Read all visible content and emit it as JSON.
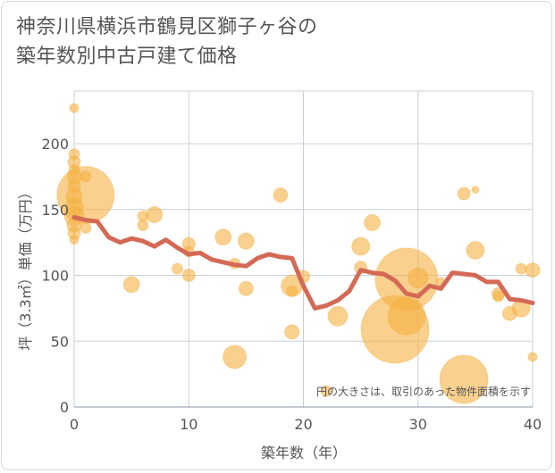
{
  "title": {
    "line1": "神奈川県横浜市鶴見区獅子ヶ谷の",
    "line2": "築年数別中古戸建て価格"
  },
  "chart_data": {
    "type": "scatter",
    "xlabel": "築年数（年）",
    "ylabel": "坪（3.3㎡）単価（万円）",
    "xlim": [
      0,
      40
    ],
    "ylim": [
      0,
      240
    ],
    "xticks": [
      "0",
      "10",
      "20",
      "30",
      "40"
    ],
    "yticks": [
      "0",
      "50",
      "100",
      "150",
      "200"
    ],
    "grid": true,
    "note": "円の大きさは、取引のあった物件面積を示す",
    "colors": {
      "bubble": "#f5b041",
      "line": "#d46a55",
      "grid": "#c8d0d8"
    },
    "bubbles": [
      {
        "x": 0,
        "y": 227,
        "r": 5
      },
      {
        "x": 0,
        "y": 192,
        "r": 6
      },
      {
        "x": 0,
        "y": 186,
        "r": 7
      },
      {
        "x": 0,
        "y": 180,
        "r": 6
      },
      {
        "x": 0,
        "y": 175,
        "r": 8
      },
      {
        "x": 0,
        "y": 168,
        "r": 7
      },
      {
        "x": 0,
        "y": 160,
        "r": 9
      },
      {
        "x": 0,
        "y": 152,
        "r": 10
      },
      {
        "x": 0,
        "y": 145,
        "r": 11
      },
      {
        "x": 0,
        "y": 138,
        "r": 8
      },
      {
        "x": 0,
        "y": 132,
        "r": 7
      },
      {
        "x": 0,
        "y": 127,
        "r": 5
      },
      {
        "x": 1,
        "y": 161,
        "r": 32
      },
      {
        "x": 1,
        "y": 175,
        "r": 6
      },
      {
        "x": 1,
        "y": 136,
        "r": 6
      },
      {
        "x": 5,
        "y": 93,
        "r": 9
      },
      {
        "x": 6,
        "y": 145,
        "r": 6
      },
      {
        "x": 6,
        "y": 138,
        "r": 6
      },
      {
        "x": 7,
        "y": 146,
        "r": 9
      },
      {
        "x": 9,
        "y": 105,
        "r": 6
      },
      {
        "x": 10,
        "y": 124,
        "r": 7
      },
      {
        "x": 10,
        "y": 118,
        "r": 6
      },
      {
        "x": 10,
        "y": 100,
        "r": 7
      },
      {
        "x": 13,
        "y": 129,
        "r": 9
      },
      {
        "x": 14,
        "y": 109,
        "r": 6
      },
      {
        "x": 14,
        "y": 38,
        "r": 13
      },
      {
        "x": 15,
        "y": 126,
        "r": 9
      },
      {
        "x": 15,
        "y": 90,
        "r": 8
      },
      {
        "x": 18,
        "y": 161,
        "r": 8
      },
      {
        "x": 19,
        "y": 92,
        "r": 12
      },
      {
        "x": 19,
        "y": 88,
        "r": 6
      },
      {
        "x": 19,
        "y": 57,
        "r": 8
      },
      {
        "x": 20,
        "y": 99,
        "r": 7
      },
      {
        "x": 22,
        "y": 12,
        "r": 6
      },
      {
        "x": 23,
        "y": 69,
        "r": 11
      },
      {
        "x": 25,
        "y": 122,
        "r": 10
      },
      {
        "x": 25,
        "y": 106,
        "r": 7
      },
      {
        "x": 26,
        "y": 140,
        "r": 9
      },
      {
        "x": 28,
        "y": 59,
        "r": 38
      },
      {
        "x": 29,
        "y": 97,
        "r": 35
      },
      {
        "x": 29,
        "y": 69,
        "r": 21
      },
      {
        "x": 30,
        "y": 98,
        "r": 11
      },
      {
        "x": 32,
        "y": 95,
        "r": 5
      },
      {
        "x": 34,
        "y": 162,
        "r": 7
      },
      {
        "x": 34,
        "y": 21,
        "r": 27
      },
      {
        "x": 35,
        "y": 165,
        "r": 4
      },
      {
        "x": 35,
        "y": 119,
        "r": 10
      },
      {
        "x": 37,
        "y": 86,
        "r": 7
      },
      {
        "x": 37,
        "y": 84,
        "r": 6
      },
      {
        "x": 38,
        "y": 71,
        "r": 8
      },
      {
        "x": 39,
        "y": 105,
        "r": 6
      },
      {
        "x": 39,
        "y": 75,
        "r": 10
      },
      {
        "x": 40,
        "y": 104,
        "r": 8
      },
      {
        "x": 40,
        "y": 38,
        "r": 5
      }
    ],
    "trend": {
      "x": [
        0,
        1,
        2,
        3,
        4,
        5,
        6,
        7,
        8,
        9,
        10,
        11,
        12,
        13,
        14,
        15,
        16,
        17,
        18,
        19,
        20,
        21,
        22,
        23,
        24,
        25,
        26,
        27,
        28,
        29,
        30,
        31,
        32,
        33,
        34,
        35,
        36,
        37,
        38,
        39,
        40
      ],
      "y": [
        144,
        142,
        141,
        129,
        125,
        128,
        126,
        122,
        127,
        121,
        116,
        117,
        112,
        110,
        108,
        107,
        113,
        116,
        114,
        113,
        92,
        75,
        77,
        81,
        88,
        104,
        102,
        101,
        96,
        86,
        84,
        92,
        90,
        102,
        101,
        100,
        95,
        95,
        82,
        81,
        79
      ]
    }
  }
}
